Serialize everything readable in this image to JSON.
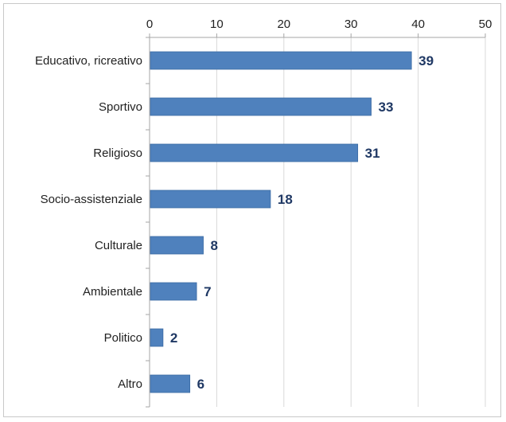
{
  "chart_data": {
    "type": "bar",
    "orientation": "horizontal",
    "title": "",
    "xlabel": "",
    "ylabel": "",
    "categories": [
      "Educativo, ricreativo",
      "Sportivo",
      "Religioso",
      "Socio-assistenziale",
      "Culturale",
      "Ambientale",
      "Politico",
      "Altro"
    ],
    "values": [
      39,
      33,
      31,
      18,
      8,
      7,
      2,
      6
    ],
    "xlim": [
      0,
      50
    ],
    "xticks": [
      0,
      10,
      20,
      30,
      40,
      50
    ],
    "x_axis_position": "top",
    "grid": true,
    "legend": "none",
    "colors": {
      "bar": "#4f81bd",
      "bar_edge": "#3a6aa3",
      "data_label": "#1f3864",
      "grid": "#d9d9d9",
      "axis": "#a6a6a6"
    }
  }
}
